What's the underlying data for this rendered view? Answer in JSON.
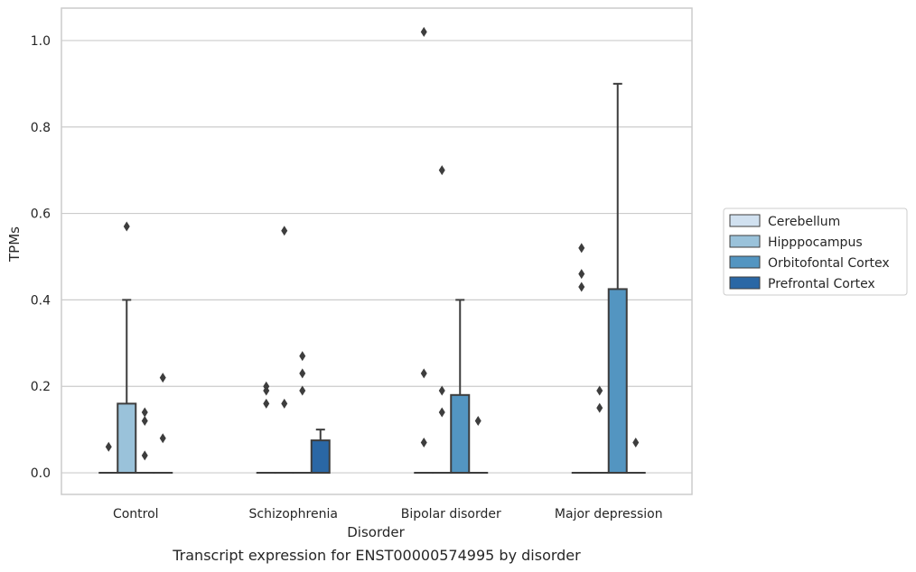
{
  "caption": "Transcript expression for ENST00000574995 by disorder",
  "chart_data": {
    "type": "box",
    "xlabel": "Disorder",
    "ylabel": "TPMs",
    "ylim": [
      -0.05,
      1.075
    ],
    "yticks": [
      "0.0",
      "0.2",
      "0.4",
      "0.6",
      "0.8",
      "1.0"
    ],
    "grid": true,
    "legend_position": "right",
    "categories": [
      "Control",
      "Schizophrenia",
      "Bipolar disorder",
      "Major depression"
    ],
    "series": [
      {
        "name": "Cerebellum",
        "color": "#d1e1f0",
        "boxes": [
          {
            "q1": 0,
            "median": 0,
            "q3": 0,
            "whisker_low": 0,
            "whisker_high": 0,
            "outliers": [
              0.06
            ]
          },
          {
            "q1": 0,
            "median": 0,
            "q3": 0,
            "whisker_low": 0,
            "whisker_high": 0,
            "outliers": [
              0.16,
              0.19,
              0.2
            ]
          },
          {
            "q1": 0,
            "median": 0,
            "q3": 0,
            "whisker_low": 0,
            "whisker_high": 0,
            "outliers": [
              0.07,
              0.23,
              1.02
            ]
          },
          {
            "q1": 0,
            "median": 0,
            "q3": 0,
            "whisker_low": 0,
            "whisker_high": 0,
            "outliers": [
              0.43,
              0.46,
              0.52
            ]
          }
        ]
      },
      {
        "name": "Hipppocampus",
        "color": "#9ac2da",
        "boxes": [
          {
            "q1": 0,
            "median": 0,
            "q3": 0.16,
            "whisker_low": 0,
            "whisker_high": 0.4,
            "outliers": [
              0.57
            ]
          },
          {
            "q1": 0,
            "median": 0,
            "q3": 0,
            "whisker_low": 0,
            "whisker_high": 0,
            "outliers": [
              0.16,
              0.56
            ]
          },
          {
            "q1": 0,
            "median": 0,
            "q3": 0,
            "whisker_low": 0,
            "whisker_high": 0,
            "outliers": [
              0.14,
              0.19,
              0.7
            ]
          },
          {
            "q1": 0,
            "median": 0,
            "q3": 0,
            "whisker_low": 0,
            "whisker_high": 0,
            "outliers": [
              0.15,
              0.19
            ]
          }
        ]
      },
      {
        "name": "Orbitofontal Cortex",
        "color": "#5395c1",
        "boxes": [
          {
            "q1": 0,
            "median": 0,
            "q3": 0,
            "whisker_low": 0,
            "whisker_high": 0,
            "outliers": [
              0.04,
              0.12,
              0.14
            ]
          },
          {
            "q1": 0,
            "median": 0,
            "q3": 0,
            "whisker_low": 0,
            "whisker_high": 0,
            "outliers": [
              0.19,
              0.23,
              0.27
            ]
          },
          {
            "q1": 0,
            "median": 0,
            "q3": 0.18,
            "whisker_low": 0,
            "whisker_high": 0.4,
            "outliers": []
          },
          {
            "q1": 0,
            "median": 0,
            "q3": 0.425,
            "whisker_low": 0,
            "whisker_high": 0.9,
            "outliers": []
          }
        ]
      },
      {
        "name": "Prefrontal Cortex",
        "color": "#2a67a5",
        "boxes": [
          {
            "q1": 0,
            "median": 0,
            "q3": 0,
            "whisker_low": 0,
            "whisker_high": 0,
            "outliers": [
              0.08,
              0.22
            ]
          },
          {
            "q1": 0,
            "median": 0,
            "q3": 0.075,
            "whisker_low": 0,
            "whisker_high": 0.1,
            "outliers": []
          },
          {
            "q1": 0,
            "median": 0,
            "q3": 0,
            "whisker_low": 0,
            "whisker_high": 0,
            "outliers": [
              0.12
            ]
          },
          {
            "q1": 0,
            "median": 0,
            "q3": 0,
            "whisker_low": 0,
            "whisker_high": 0,
            "outliers": [
              0.07
            ]
          }
        ]
      }
    ]
  }
}
